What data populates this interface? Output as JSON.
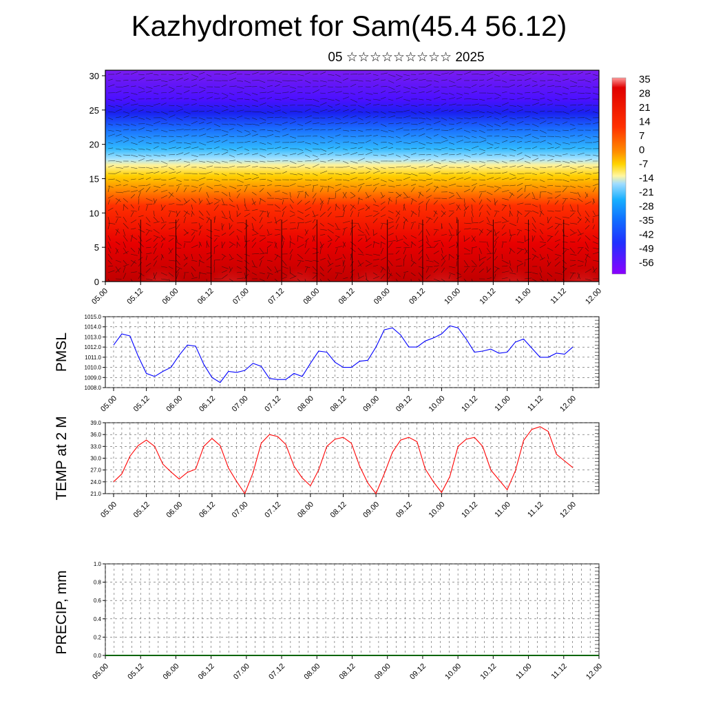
{
  "header": {
    "title": "Kazhydromet for Sam(45.4 56.12)",
    "subtitle": "05 ☆☆☆☆☆☆☆☆☆ 2025"
  },
  "colors": {
    "pmsl_line": "#0000ff",
    "temp_line": "#ff0000",
    "precip_line": "#006400",
    "colormap": [
      "#8b00ff",
      "#5a00ff",
      "#2030ff",
      "#1070ff",
      "#18b0ff",
      "#9fdcff",
      "#fff6a0",
      "#ffd400",
      "#ffa000",
      "#ff6000",
      "#ff2000",
      "#e00000",
      "#ff9a9a"
    ]
  },
  "chart_data": [
    {
      "type": "heatmap",
      "name": "cross-section",
      "x_ticks": [
        "05.00",
        "05.12",
        "06.00",
        "06.12",
        "07.00",
        "07.12",
        "08.00",
        "08.12",
        "09.00",
        "09.12",
        "10.00",
        "10.12",
        "11.00",
        "11.12",
        "12.00"
      ],
      "y_ticks": [
        0,
        5,
        10,
        15,
        20,
        25,
        30
      ],
      "ylim": [
        0,
        30.8
      ],
      "colorbar_labels": [
        "35",
        "28",
        "21",
        "14",
        "7",
        "0",
        "-7",
        "-14",
        "-21",
        "-28",
        "-35",
        "-42",
        "-49",
        "-56"
      ],
      "colorbar_range": [
        -60,
        39
      ],
      "overlay": "wind barbs"
    },
    {
      "type": "line",
      "name": "PMSL",
      "ylabel": "PMSL",
      "ylim": [
        1008.0,
        1015.0
      ],
      "y_ticks": [
        "1008.0",
        "1009.0",
        "1010.0",
        "1011.0",
        "1012.0",
        "1013.0",
        "1014.0",
        "1015.0"
      ],
      "x_ticks": [
        "05.00",
        "05.12",
        "06.00",
        "06.12",
        "07.00",
        "07.12",
        "08.00",
        "08.12",
        "09.00",
        "09.12",
        "10.00",
        "10.12",
        "11.00",
        "11.12",
        "12.00"
      ],
      "values": [
        1012.2,
        1013.3,
        1013.1,
        1011.1,
        1009.4,
        1009.1,
        1009.6,
        1010.0,
        1011.2,
        1012.2,
        1012.1,
        1010.3,
        1009.0,
        1008.5,
        1009.6,
        1009.5,
        1009.7,
        1010.4,
        1010.1,
        1008.9,
        1008.8,
        1008.8,
        1009.4,
        1009.1,
        1010.4,
        1011.6,
        1011.5,
        1010.5,
        1010.0,
        1010.0,
        1010.6,
        1010.7,
        1012.0,
        1013.7,
        1013.9,
        1013.2,
        1012.0,
        1012.0,
        1012.6,
        1012.9,
        1013.3,
        1014.1,
        1013.9,
        1012.8,
        1011.5,
        1011.6,
        1011.8,
        1011.4,
        1011.5,
        1012.5,
        1012.8,
        1011.9,
        1011.0,
        1011.0,
        1011.4,
        1011.3,
        1012.0
      ]
    },
    {
      "type": "line",
      "name": "TEMP",
      "ylabel": "TEMP at 2 M",
      "ylim": [
        21.0,
        39.0
      ],
      "y_ticks": [
        "21.0",
        "24.0",
        "27.0",
        "30.0",
        "33.0",
        "36.0",
        "39.0"
      ],
      "x_ticks": [
        "05.00",
        "05.12",
        "06.00",
        "06.12",
        "07.00",
        "07.12",
        "08.00",
        "08.12",
        "09.00",
        "09.12",
        "10.00",
        "10.12",
        "11.00",
        "11.12",
        "12.00"
      ],
      "values": [
        24.0,
        26.0,
        30.5,
        33.2,
        34.6,
        33.0,
        28.5,
        26.5,
        24.7,
        26.4,
        27.2,
        33.0,
        35.0,
        33.2,
        27.5,
        24.1,
        21.0,
        26.3,
        33.8,
        36.0,
        35.5,
        33.5,
        28.0,
        25.0,
        23.0,
        27.0,
        33.0,
        34.8,
        35.3,
        33.8,
        28.0,
        23.7,
        21.0,
        26.0,
        31.5,
        34.6,
        35.3,
        34.2,
        27.3,
        24.0,
        21.3,
        25.3,
        33.0,
        34.8,
        35.3,
        33.0,
        27.0,
        24.5,
        22.0,
        26.8,
        34.5,
        37.3,
        38.0,
        36.8,
        31.0,
        29.3,
        27.6
      ]
    },
    {
      "type": "line",
      "name": "PRECIP",
      "ylabel": "PRECIP, mm",
      "ylim": [
        0.0,
        1.0
      ],
      "y_ticks": [
        "0.0",
        "0.2",
        "0.4",
        "0.6",
        "0.8",
        "1.0"
      ],
      "x_ticks": [
        "05.00",
        "05.12",
        "06.00",
        "06.12",
        "07.00",
        "07.12",
        "08.00",
        "08.12",
        "09.00",
        "09.12",
        "10.00",
        "10.12",
        "11.00",
        "11.12",
        "12.00"
      ],
      "values": [
        0,
        0,
        0,
        0,
        0,
        0,
        0,
        0,
        0,
        0,
        0,
        0,
        0,
        0,
        0,
        0,
        0,
        0,
        0,
        0,
        0,
        0,
        0,
        0,
        0,
        0,
        0,
        0,
        0,
        0,
        0,
        0,
        0,
        0,
        0,
        0,
        0,
        0,
        0,
        0,
        0,
        0,
        0,
        0,
        0,
        0,
        0,
        0,
        0,
        0,
        0,
        0,
        0,
        0,
        0,
        0,
        0
      ]
    }
  ]
}
